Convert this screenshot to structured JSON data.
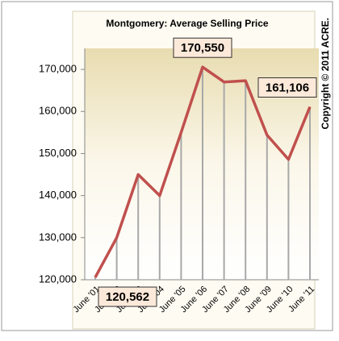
{
  "chart_data": {
    "type": "line",
    "title": "Montgomery: Average Selling Price",
    "annotations": [
      "Copyright © 2011 ACRE."
    ],
    "categories": [
      "June '01",
      "June '02",
      "June '03",
      "June '04",
      "June '05",
      "June '06",
      "June '07",
      "June '08",
      "June '09",
      "June '10",
      "June '11"
    ],
    "series": [
      {
        "name": "Average Selling Price",
        "color": "#c0504d",
        "values": [
          120562,
          130000,
          145000,
          140000,
          155000,
          170550,
          167000,
          167300,
          154400,
          148600,
          161106
        ],
        "value_labels": [
          "120,562",
          null,
          null,
          null,
          null,
          "170,550",
          null,
          null,
          null,
          null,
          "161,106"
        ]
      }
    ],
    "ylim": [
      120000,
      175000
    ],
    "yticks": [
      {
        "value": 120000,
        "label": "120,000"
      },
      {
        "value": 130000,
        "label": "130,000"
      },
      {
        "value": 140000,
        "label": "140,000"
      },
      {
        "value": 150000,
        "label": "150,000"
      },
      {
        "value": 160000,
        "label": "160,000"
      },
      {
        "value": 170000,
        "label": "170,000"
      }
    ]
  }
}
